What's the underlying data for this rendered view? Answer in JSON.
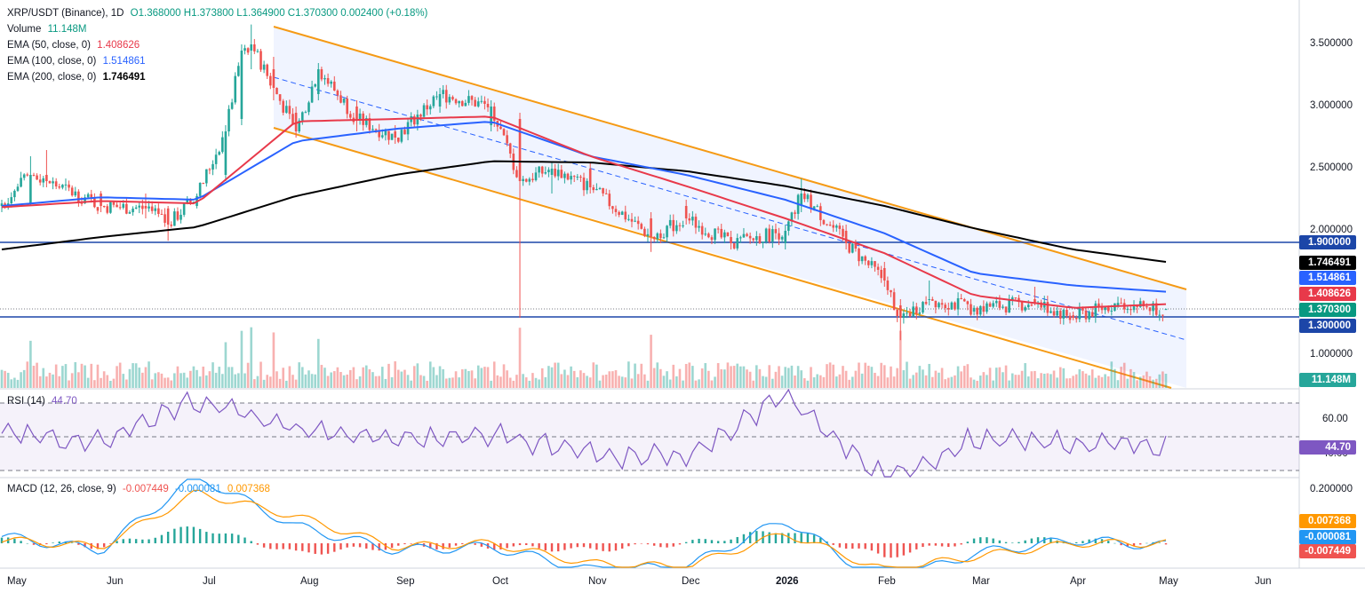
{
  "header": {
    "symbol": "XRP/USDT (Binance), 1D",
    "ohlc": "O1.368000  H1.373800  L1.364900  C1.370300  0.002400 (+0.18%)",
    "volume_label": "Volume",
    "volume_value": "11.148M",
    "ema50_label": "EMA (50, close, 0)",
    "ema50_value": "1.408626",
    "ema100_label": "EMA (100, close, 0)",
    "ema100_value": "1.514861",
    "ema200_label": "EMA (200, close, 0)",
    "ema200_value": "1.746491"
  },
  "rsi_panel": {
    "label": "RSI (14)",
    "value": "44.70"
  },
  "macd_panel": {
    "label": "MACD (12, 26, close, 9)",
    "macd": "-0.007449",
    "signal": "-0.000081",
    "hist": "0.007368"
  },
  "price_pills": {
    "h1": "1.900000",
    "ema200": "1.746491",
    "ema100": "1.514861",
    "ema50": "1.408626",
    "last": "1.370300",
    "h2": "1.300000",
    "volume": "11.148M",
    "rsi": "44.70",
    "macd_hist": "0.007368",
    "macd_signal": "-0.000081",
    "macd_line": "-0.007449"
  },
  "axis": {
    "price_ticks": [
      "3.500000",
      "3.000000",
      "2.500000",
      "2.000000",
      "1.000000"
    ],
    "rsi_ticks": [
      "60.00",
      "40.00"
    ],
    "macd_ticks": [
      "0.200000"
    ],
    "months": [
      "May",
      "Jun",
      "Jul",
      "Aug",
      "Sep",
      "Oct",
      "Nov",
      "Dec",
      "2026",
      "Feb",
      "Mar",
      "Apr",
      "May",
      "Jun"
    ]
  },
  "colors": {
    "up": "#26a69a",
    "down": "#ef5350",
    "ema50": "#e8394a",
    "ema100": "#2962ff",
    "ema200": "#000000",
    "channel": "#f59a15",
    "hline": "#1c46a8",
    "rsi": "#7e57c2",
    "macd": "#2196f3",
    "signal": "#ff9800"
  },
  "chart_data": [
    {
      "type": "line",
      "title": "XRP/USDT (Binance), 1D",
      "series": [
        {
          "name": "EMA (50, close, 0)",
          "x": [
            "2025-05-01",
            "2025-06-01",
            "2025-07-01",
            "2025-08-01",
            "2025-09-01",
            "2025-10-01",
            "2025-11-01",
            "2025-12-01",
            "2026-01-01",
            "2026-02-01",
            "2026-03-01",
            "2026-04-01",
            "2026-04-30"
          ],
          "values": [
            2.19,
            2.24,
            2.22,
            2.88,
            2.9,
            2.92,
            2.6,
            2.36,
            2.1,
            1.82,
            1.48,
            1.38,
            1.41
          ]
        },
        {
          "name": "EMA (100, close, 0)",
          "x": [
            "2025-05-01",
            "2025-06-01",
            "2025-07-01",
            "2025-08-01",
            "2025-09-01",
            "2025-10-01",
            "2025-11-01",
            "2025-12-01",
            "2026-01-01",
            "2026-02-01",
            "2026-03-01",
            "2026-04-01",
            "2026-04-30"
          ],
          "values": [
            2.2,
            2.27,
            2.25,
            2.72,
            2.82,
            2.88,
            2.6,
            2.45,
            2.25,
            1.98,
            1.66,
            1.56,
            1.51
          ]
        },
        {
          "name": "EMA (200, close, 0)",
          "x": [
            "2025-05-01",
            "2025-06-01",
            "2025-07-01",
            "2025-08-01",
            "2025-09-01",
            "2025-10-01",
            "2025-11-01",
            "2025-12-01",
            "2026-01-01",
            "2026-02-01",
            "2026-03-01",
            "2026-04-01",
            "2026-04-30"
          ],
          "values": [
            1.85,
            1.95,
            2.03,
            2.28,
            2.45,
            2.56,
            2.55,
            2.48,
            2.36,
            2.2,
            2.02,
            1.85,
            1.75
          ]
        }
      ],
      "candles_ohlc": [
        [
          "2025-05-01",
          2.2,
          2.25,
          2.15,
          2.22
        ],
        [
          "2025-05-10",
          2.22,
          2.6,
          2.2,
          2.45
        ],
        [
          "2025-05-15",
          2.45,
          2.65,
          2.35,
          2.4
        ],
        [
          "2025-06-01",
          2.3,
          2.32,
          2.15,
          2.2
        ],
        [
          "2025-06-15",
          2.2,
          2.3,
          2.1,
          2.18
        ],
        [
          "2025-06-22",
          2.18,
          2.2,
          1.92,
          2.05
        ],
        [
          "2025-07-01",
          2.2,
          2.3,
          2.18,
          2.28
        ],
        [
          "2025-07-10",
          2.45,
          2.85,
          2.4,
          2.8
        ],
        [
          "2025-07-15",
          2.9,
          3.5,
          2.85,
          3.45
        ],
        [
          "2025-07-18",
          3.45,
          3.66,
          3.3,
          3.5
        ],
        [
          "2025-07-25",
          3.3,
          3.4,
          3.05,
          3.15
        ],
        [
          "2025-08-01",
          2.95,
          3.0,
          2.75,
          2.8
        ],
        [
          "2025-08-08",
          3.1,
          3.35,
          3.05,
          3.3
        ],
        [
          "2025-08-20",
          3.0,
          3.05,
          2.8,
          2.9
        ],
        [
          "2025-09-01",
          2.8,
          2.85,
          2.7,
          2.75
        ],
        [
          "2025-09-15",
          3.0,
          3.15,
          2.95,
          3.1
        ],
        [
          "2025-10-01",
          2.85,
          3.05,
          2.8,
          3.0
        ],
        [
          "2025-10-10",
          2.9,
          2.95,
          1.3,
          2.4
        ],
        [
          "2025-10-20",
          2.45,
          2.55,
          2.3,
          2.5
        ],
        [
          "2025-11-01",
          2.5,
          2.55,
          2.3,
          2.35
        ],
        [
          "2025-11-20",
          2.1,
          2.15,
          1.83,
          1.95
        ],
        [
          "2025-12-01",
          2.2,
          2.25,
          2.05,
          2.1
        ],
        [
          "2025-12-15",
          1.95,
          2.0,
          1.85,
          1.9
        ],
        [
          "2026-01-01",
          1.9,
          2.05,
          1.85,
          2.0
        ],
        [
          "2026-01-06",
          2.2,
          2.42,
          2.15,
          2.3
        ],
        [
          "2026-01-20",
          2.0,
          2.05,
          1.85,
          1.9
        ],
        [
          "2026-02-01",
          1.7,
          1.75,
          1.55,
          1.6
        ],
        [
          "2026-02-06",
          1.4,
          1.45,
          1.12,
          1.3
        ],
        [
          "2026-02-15",
          1.45,
          1.6,
          1.4,
          1.45
        ],
        [
          "2026-03-01",
          1.35,
          1.4,
          1.32,
          1.38
        ],
        [
          "2026-03-20",
          1.45,
          1.55,
          1.4,
          1.42
        ],
        [
          "2026-04-01",
          1.32,
          1.35,
          1.28,
          1.3
        ],
        [
          "2026-04-15",
          1.4,
          1.47,
          1.38,
          1.42
        ],
        [
          "2026-04-30",
          1.368,
          1.3738,
          1.3649,
          1.3703
        ]
      ],
      "annotations": [
        "1.900000",
        "1.300000"
      ],
      "ylim": [
        0.95,
        3.7
      ]
    },
    {
      "type": "line",
      "title": "RSI (14)",
      "series": [
        {
          "name": "RSI (14)",
          "x": [
            "2025-05",
            "2025-06",
            "2025-07",
            "2025-08",
            "2025-09",
            "2025-10",
            "2025-11",
            "2025-12",
            "2026-01",
            "2026-02",
            "2026-03",
            "2026-04",
            "2026-04-30"
          ],
          "values": [
            52,
            46,
            72,
            55,
            48,
            52,
            40,
            38,
            74,
            24,
            48,
            46,
            44.7
          ]
        }
      ],
      "ylim": [
        25,
        80
      ]
    },
    {
      "type": "bar",
      "title": "MACD (12, 26, close, 9)",
      "series": [
        {
          "name": "MACD",
          "x": [
            "2025-05",
            "2025-06",
            "2025-07",
            "2025-08",
            "2025-09",
            "2025-10",
            "2025-11",
            "2025-12",
            "2026-01",
            "2026-02",
            "2026-03",
            "2026-04",
            "2026-04-30"
          ],
          "values": [
            0.02,
            -0.02,
            0.2,
            0.05,
            -0.02,
            -0.01,
            -0.08,
            -0.07,
            0.07,
            -0.12,
            -0.03,
            0.01,
            -0.007449
          ]
        },
        {
          "name": "Signal",
          "x": [
            "2025-05",
            "2025-06",
            "2025-07",
            "2025-08",
            "2025-09",
            "2025-10",
            "2025-11",
            "2025-12",
            "2026-01",
            "2026-02",
            "2026-03",
            "2026-04",
            "2026-04-30"
          ],
          "values": [
            0.01,
            -0.01,
            0.15,
            0.08,
            -0.01,
            0.0,
            -0.06,
            -0.07,
            0.03,
            -0.08,
            -0.04,
            0.0,
            -8.1e-05
          ]
        }
      ]
    }
  ]
}
